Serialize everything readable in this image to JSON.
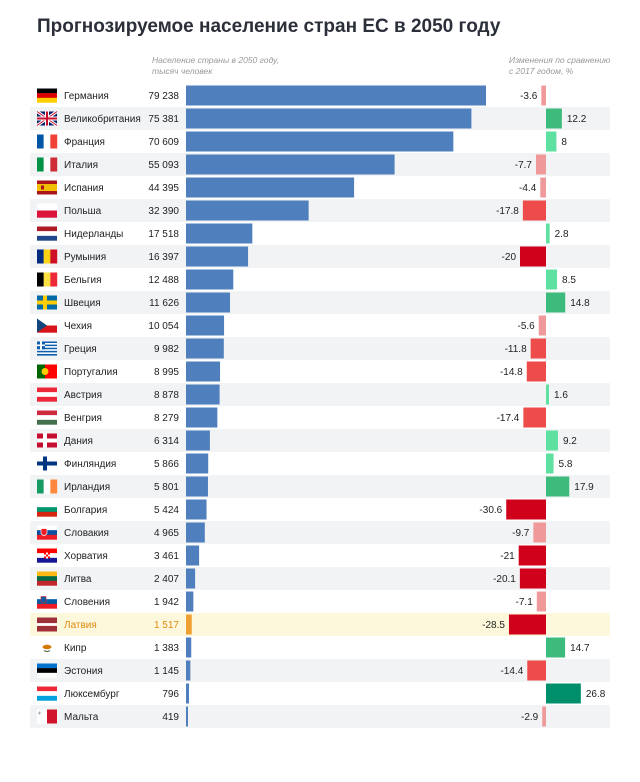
{
  "title": "Прогнозируемое население стран ЕС в 2050 году",
  "col_pop_header": [
    "Население страны в 2050 году,",
    "тысяч человек"
  ],
  "col_change_header": [
    "Изменения по сравнению",
    "с 2017 годом, %"
  ],
  "chart_data": {
    "type": "bar",
    "title": "Прогнозируемое население стран ЕС в 2050 году",
    "series": [
      {
        "name": "Население страны в 2050 году, тысяч человек",
        "values": [
          79238,
          75381,
          70609,
          55093,
          44395,
          32390,
          17518,
          16397,
          12488,
          11626,
          10054,
          9982,
          8995,
          8878,
          8279,
          6314,
          5866,
          5801,
          5424,
          4965,
          3461,
          2407,
          1942,
          1517,
          1383,
          1145,
          796,
          419
        ]
      },
      {
        "name": "Изменения по сравнению с 2017 годом, %",
        "values": [
          -3.6,
          12.2,
          8,
          -7.7,
          -4.4,
          -17.8,
          2.8,
          -20,
          8.5,
          14.8,
          -5.6,
          -11.8,
          -14.8,
          1.6,
          -17.4,
          9.2,
          5.8,
          17.9,
          -30.6,
          -9.7,
          -21,
          -20.1,
          -7.1,
          -28.5,
          14.7,
          -14.4,
          26.8,
          -2.9
        ]
      }
    ],
    "categories": [
      "Германия",
      "Великобритания",
      "Франция",
      "Италия",
      "Испания",
      "Польша",
      "Нидерланды",
      "Румыния",
      "Бельгия",
      "Швеция",
      "Чехия",
      "Греция",
      "Португалия",
      "Австрия",
      "Венгрия",
      "Дания",
      "Финляндия",
      "Ирландия",
      "Болгария",
      "Словакия",
      "Хорватия",
      "Литва",
      "Словения",
      "Латвия",
      "Кипр",
      "Эстония",
      "Люксембург",
      "Мальта"
    ],
    "pop_labels": [
      "79 238",
      "75 381",
      "70 609",
      "55 093",
      "44 395",
      "32 390",
      "17 518",
      "16 397",
      "12 488",
      "11 626",
      "10 054",
      "9 982",
      "8 995",
      "8 878",
      "8 279",
      "6 314",
      "5 866",
      "5 801",
      "5 424",
      "4 965",
      "3 461",
      "2 407",
      "1 942",
      "1 517",
      "1 383",
      "1 145",
      "796",
      "419"
    ],
    "change_labels": [
      "-3.6",
      "12.2",
      "8",
      "-7.7",
      "-4.4",
      "-17.8",
      "2.8",
      "-20",
      "8.5",
      "14.8",
      "-5.6",
      "-11.8",
      "-14.8",
      "1.6",
      "-17.4",
      "9.2",
      "5.8",
      "17.9",
      "-30.6",
      "-9.7",
      "-21",
      "-20.1",
      "-7.1",
      "-28.5",
      "14.7",
      "-14.4",
      "26.8",
      "-2.9"
    ],
    "highlight": "Латвия",
    "flags": [
      "flag-de-icon",
      "flag-gb-icon",
      "flag-fr-icon",
      "flag-it-icon",
      "flag-es-icon",
      "flag-pl-icon",
      "flag-nl-icon",
      "flag-ro-icon",
      "flag-be-icon",
      "flag-se-icon",
      "flag-cz-icon",
      "flag-gr-icon",
      "flag-pt-icon",
      "flag-at-icon",
      "flag-hu-icon",
      "flag-dk-icon",
      "flag-fi-icon",
      "flag-ie-icon",
      "flag-bg-icon",
      "flag-sk-icon",
      "flag-hr-icon",
      "flag-lt-icon",
      "flag-si-icon",
      "flag-lv-icon",
      "flag-cy-icon",
      "flag-ee-icon",
      "flag-lu-icon",
      "flag-mt-icon"
    ],
    "colors": {
      "pop_bar": "#4f7fbd",
      "highlight_bar": "#f0a030",
      "highlight_text": "#e08a10",
      "highlight_bg": "#fdf8dc",
      "row_alt": "#f2f3f5",
      "neg_light": "#f0999a",
      "neg_mid": "#ee4b4b",
      "neg_dark": "#d0021b",
      "pos_light": "#5ee0a0",
      "pos_mid": "#3dbb7c",
      "pos_dark": "#008f6b"
    }
  }
}
